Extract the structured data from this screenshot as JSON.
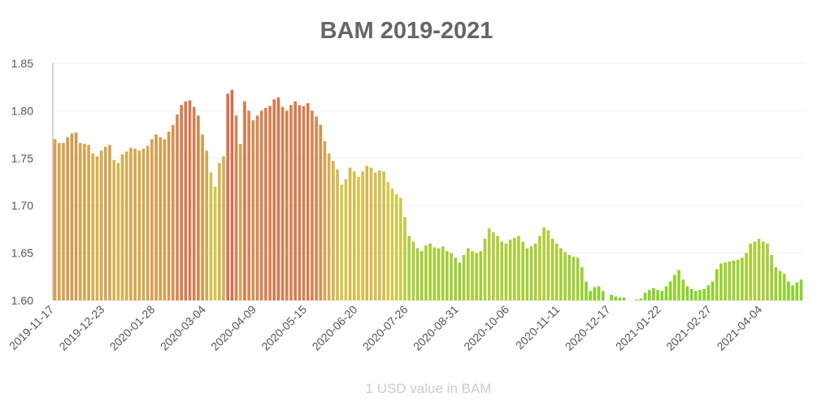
{
  "chart_data": {
    "type": "bar",
    "title": "BAM 2019-2021",
    "x_label": "1 USD value in BAM",
    "categories": [
      "2019-11-17",
      null,
      null,
      null,
      null,
      null,
      null,
      null,
      null,
      null,
      null,
      null,
      "2019-12-23",
      null,
      null,
      null,
      null,
      null,
      null,
      null,
      null,
      null,
      null,
      null,
      "2020-01-28",
      null,
      null,
      null,
      null,
      null,
      null,
      null,
      null,
      null,
      null,
      null,
      "2020-03-04",
      null,
      null,
      null,
      null,
      null,
      null,
      null,
      null,
      null,
      null,
      null,
      "2020-04-09",
      null,
      null,
      null,
      null,
      null,
      null,
      null,
      null,
      null,
      null,
      null,
      "2020-05-15",
      null,
      null,
      null,
      null,
      null,
      null,
      null,
      null,
      null,
      null,
      null,
      "2020-06-20",
      null,
      null,
      null,
      null,
      null,
      null,
      null,
      null,
      null,
      null,
      null,
      "2020-07-26",
      null,
      null,
      null,
      null,
      null,
      null,
      null,
      null,
      null,
      null,
      null,
      "2020-08-31",
      null,
      null,
      null,
      null,
      null,
      null,
      null,
      null,
      null,
      null,
      null,
      "2020-10-06",
      null,
      null,
      null,
      null,
      null,
      null,
      null,
      null,
      null,
      null,
      null,
      "2020-11-11",
      null,
      null,
      null,
      null,
      null,
      null,
      null,
      null,
      null,
      null,
      null,
      "2020-12-17",
      null,
      null,
      null,
      null,
      null,
      null,
      null,
      null,
      null,
      null,
      null,
      "2021-01-22",
      null,
      null,
      null,
      null,
      null,
      null,
      null,
      null,
      null,
      null,
      null,
      "2021-02-27",
      null,
      null,
      null,
      null,
      null,
      null,
      null,
      null,
      null,
      null,
      null,
      "2021-04-04",
      null,
      null,
      null,
      null,
      null,
      null,
      null,
      null,
      null
    ],
    "values": [
      1.77,
      1.766,
      1.766,
      1.772,
      1.776,
      1.777,
      1.766,
      1.765,
      1.764,
      1.755,
      1.752,
      1.758,
      1.762,
      1.764,
      1.748,
      1.745,
      1.754,
      1.757,
      1.761,
      1.76,
      1.758,
      1.76,
      1.763,
      1.77,
      1.775,
      1.772,
      1.77,
      1.778,
      1.785,
      1.796,
      1.806,
      1.81,
      1.811,
      1.804,
      1.795,
      1.775,
      1.758,
      1.735,
      1.72,
      1.745,
      1.752,
      1.818,
      1.822,
      1.795,
      1.765,
      1.81,
      1.8,
      1.79,
      1.795,
      1.8,
      1.803,
      1.805,
      1.812,
      1.814,
      1.804,
      1.8,
      1.806,
      1.81,
      1.806,
      1.805,
      1.808,
      1.8,
      1.794,
      1.785,
      1.768,
      1.755,
      1.747,
      1.738,
      1.722,
      1.728,
      1.74,
      1.736,
      1.73,
      1.736,
      1.742,
      1.74,
      1.735,
      1.737,
      1.736,
      1.725,
      1.718,
      1.712,
      1.708,
      1.688,
      1.668,
      1.662,
      1.655,
      1.652,
      1.658,
      1.66,
      1.656,
      1.655,
      1.657,
      1.652,
      1.65,
      1.645,
      1.64,
      1.648,
      1.655,
      1.652,
      1.65,
      1.652,
      1.665,
      1.676,
      1.672,
      1.668,
      1.662,
      1.66,
      1.664,
      1.666,
      1.668,
      1.662,
      1.655,
      1.657,
      1.66,
      1.668,
      1.677,
      1.674,
      1.665,
      1.66,
      1.655,
      1.651,
      1.648,
      1.646,
      1.645,
      1.635,
      1.62,
      1.61,
      1.614,
      1.615,
      1.61,
      null,
      1.606,
      1.604,
      1.603,
      1.603,
      null,
      null,
      1.601,
      1.602,
      1.608,
      1.611,
      1.613,
      1.611,
      1.61,
      1.615,
      1.62,
      1.627,
      1.632,
      1.622,
      1.615,
      1.612,
      1.61,
      1.611,
      1.612,
      1.616,
      1.62,
      1.633,
      1.639,
      1.64,
      1.641,
      1.642,
      1.643,
      1.645,
      1.65,
      1.66,
      1.662,
      1.665,
      1.662,
      1.66,
      1.648,
      1.635,
      1.631,
      1.628,
      1.62,
      1.616,
      1.619,
      1.622
    ],
    "colors": [
      "#7ed321",
      "#d6c84c",
      "#d9534f"
    ],
    "ylim": [
      1.6,
      1.85
    ],
    "yticks": [
      {
        "value": 1.6,
        "label": "1.60"
      },
      1.65,
      {
        "value": 1.7,
        "label": "1.70"
      },
      1.75,
      {
        "value": 1.8,
        "label": "1.80"
      },
      1.85
    ],
    "grid": true
  }
}
